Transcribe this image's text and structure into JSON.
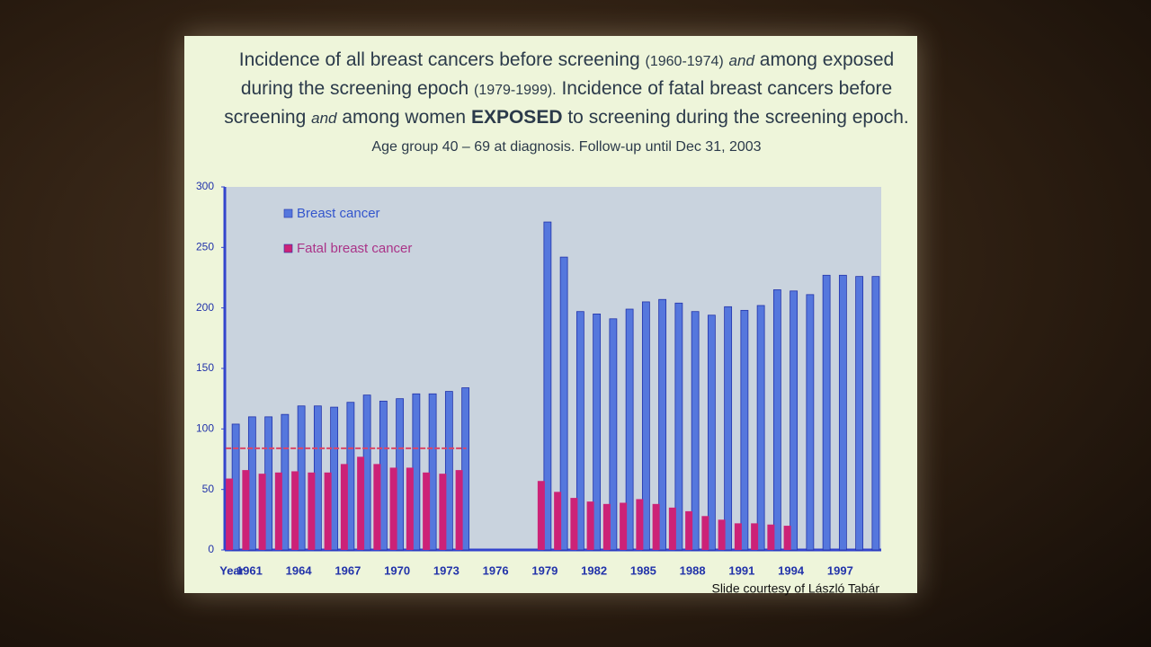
{
  "title": [
    "Incidence of all breast cancers before screening",
    "(1960-1974)",
    "and",
    "among exposed during the screening epoch",
    "(1979-1999).",
    "Incidence of fatal breast cancers before screening",
    "and",
    "among women",
    "EXPOSED",
    "to screening during the screening epoch.",
    "Age group 40 – 69 at diagnosis. Follow-up until Dec 31, 2003"
  ],
  "credit": "Slide courtesy of László Tabár",
  "chart_data": {
    "type": "bar",
    "x_label": "Year",
    "categories": [
      null,
      "1961",
      null,
      null,
      "1964",
      null,
      null,
      "1967",
      null,
      null,
      "1970",
      null,
      null,
      "1973",
      null,
      null,
      "1976",
      null,
      null,
      "1979",
      null,
      null,
      "1982",
      null,
      null,
      "1985",
      null,
      null,
      "1988",
      null,
      null,
      "1991",
      null,
      null,
      "1994",
      null,
      null,
      "1997",
      null,
      null
    ],
    "series": [
      {
        "name": "Breast cancer",
        "color": "#5577dd",
        "values": [
          104,
          110,
          110,
          112,
          119,
          119,
          118,
          122,
          128,
          123,
          125,
          129,
          129,
          131,
          134,
          null,
          null,
          null,
          null,
          271,
          242,
          197,
          195,
          191,
          199,
          205,
          207,
          204,
          197,
          194,
          201,
          198,
          202,
          215,
          214,
          211,
          227,
          227,
          226,
          226
        ]
      },
      {
        "name": "Fatal breast cancer",
        "color": "#cc2277",
        "values": [
          59,
          66,
          63,
          64,
          65,
          64,
          64,
          71,
          77,
          71,
          68,
          68,
          64,
          63,
          66,
          null,
          null,
          null,
          null,
          57,
          48,
          43,
          40,
          38,
          39,
          42,
          38,
          35,
          32,
          28,
          25,
          22,
          22,
          21,
          20,
          null,
          null,
          null,
          null,
          null
        ]
      }
    ],
    "reference_line": 84,
    "ylim": [
      0,
      300
    ],
    "yticks": [
      0,
      50,
      100,
      150,
      200,
      250,
      300
    ]
  }
}
